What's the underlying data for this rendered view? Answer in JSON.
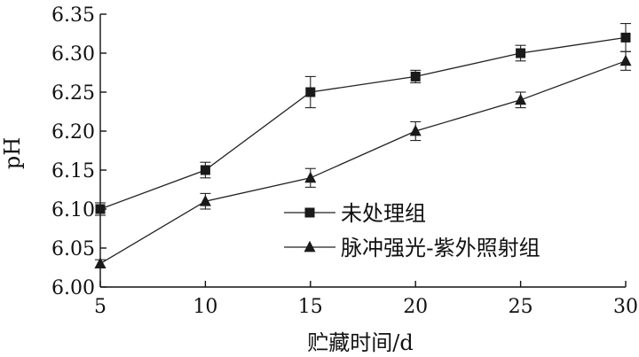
{
  "chart_data": {
    "type": "line",
    "xlabel": "贮藏时间/d",
    "ylabel": "pH",
    "x": [
      5,
      10,
      15,
      20,
      25,
      30
    ],
    "xlim": [
      5,
      30
    ],
    "ylim": [
      6.0,
      6.35
    ],
    "x_ticks": [
      5,
      10,
      15,
      20,
      25,
      30
    ],
    "y_ticks": [
      "6.00",
      "6.05",
      "6.10",
      "6.15",
      "6.20",
      "6.25",
      "6.30",
      "6.35"
    ],
    "y_tick_values": [
      6.0,
      6.05,
      6.1,
      6.15,
      6.2,
      6.25,
      6.3,
      6.35
    ],
    "grid": false,
    "legend_position": "center-right",
    "series": [
      {
        "name": "未处理组",
        "marker": "square",
        "values": [
          6.1,
          6.15,
          6.25,
          6.27,
          6.3,
          6.32
        ],
        "errors": [
          0.008,
          0.01,
          0.02,
          0.008,
          0.01,
          0.018
        ]
      },
      {
        "name": "脉冲强光-紫外照射组",
        "marker": "triangle",
        "values": [
          6.03,
          6.11,
          6.14,
          6.2,
          6.24,
          6.29
        ],
        "errors": [
          0.005,
          0.01,
          0.012,
          0.012,
          0.01,
          0.012
        ]
      }
    ]
  }
}
